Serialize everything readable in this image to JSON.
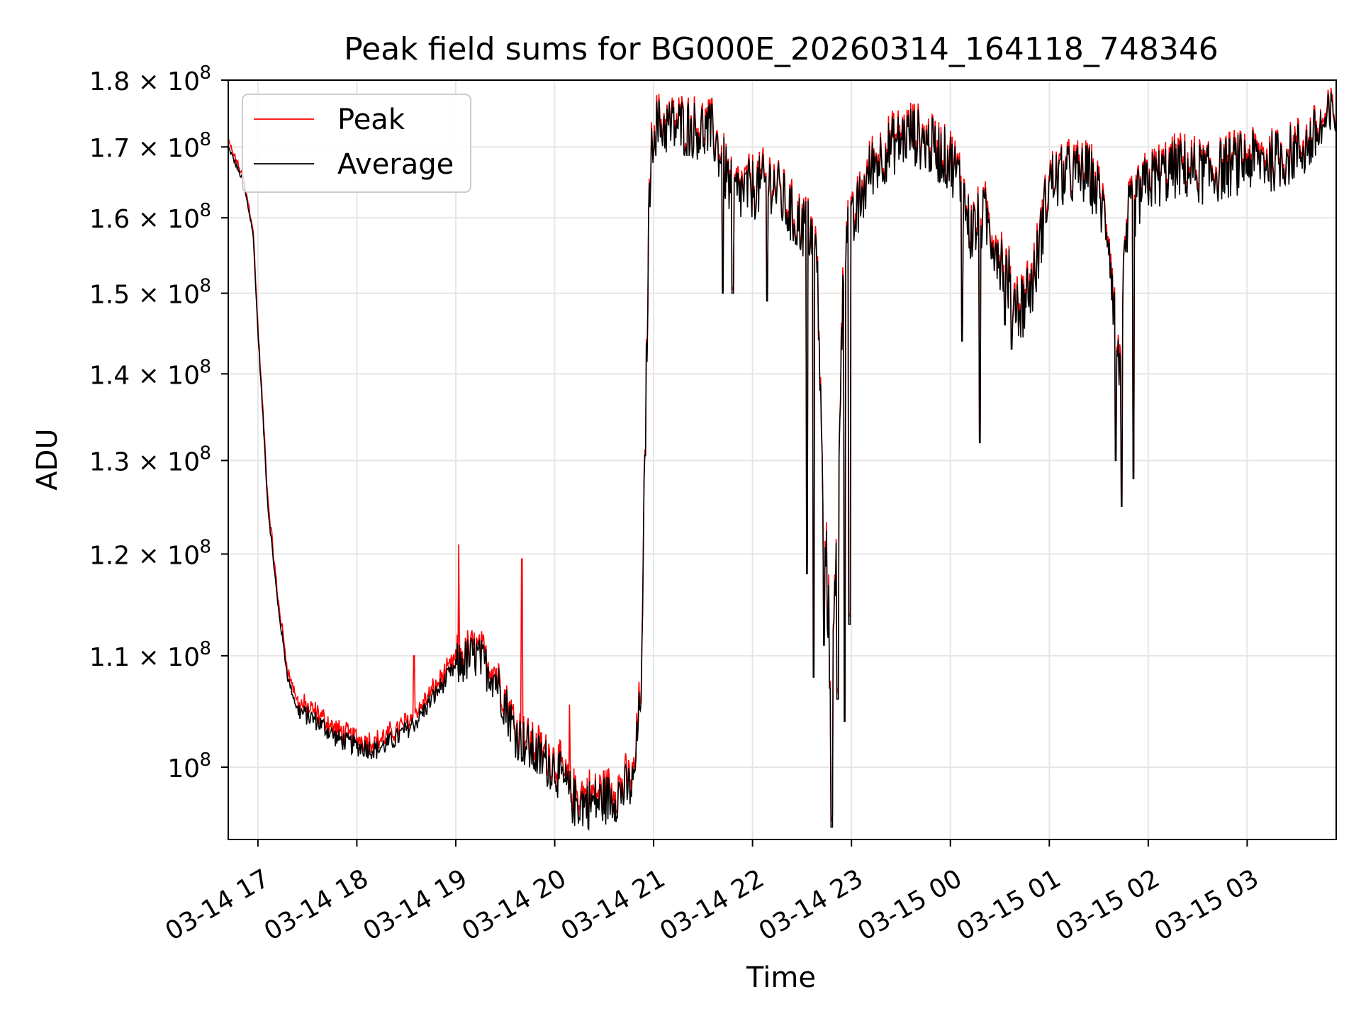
{
  "chart_data": {
    "type": "line",
    "title": "Peak field sums for BG000E_20260314_164118_748346",
    "xlabel": "Time",
    "ylabel": "ADU",
    "yscale": "log",
    "ylim": [
      94000000,
      180000000
    ],
    "xlim_hours": [
      16.7,
      27.9
    ],
    "grid": true,
    "legend_position": "upper-left",
    "x_ticks": [
      {
        "hour": 17,
        "label": "03-14 17"
      },
      {
        "hour": 18,
        "label": "03-14 18"
      },
      {
        "hour": 19,
        "label": "03-14 19"
      },
      {
        "hour": 20,
        "label": "03-14 20"
      },
      {
        "hour": 21,
        "label": "03-14 21"
      },
      {
        "hour": 22,
        "label": "03-14 22"
      },
      {
        "hour": 23,
        "label": "03-14 23"
      },
      {
        "hour": 24,
        "label": "03-15 00"
      },
      {
        "hour": 25,
        "label": "03-15 01"
      },
      {
        "hour": 26,
        "label": "03-15 02"
      },
      {
        "hour": 27,
        "label": "03-15 03"
      }
    ],
    "y_ticks": [
      {
        "value": 100000000,
        "mantissa": "",
        "exp": "8"
      },
      {
        "value": 110000000,
        "mantissa": "1.1",
        "exp": "8"
      },
      {
        "value": 120000000,
        "mantissa": "1.2",
        "exp": "8"
      },
      {
        "value": 130000000,
        "mantissa": "1.3",
        "exp": "8"
      },
      {
        "value": 140000000,
        "mantissa": "1.4",
        "exp": "8"
      },
      {
        "value": 150000000,
        "mantissa": "1.5",
        "exp": "8"
      },
      {
        "value": 160000000,
        "mantissa": "1.6",
        "exp": "8"
      },
      {
        "value": 170000000,
        "mantissa": "1.7",
        "exp": "8"
      },
      {
        "value": 180000000,
        "mantissa": "1.8",
        "exp": "8"
      }
    ],
    "series": [
      {
        "name": "Peak",
        "color": "#ff0000"
      },
      {
        "name": "Average",
        "color": "#000000"
      }
    ],
    "trend_hours_vs_mADU": [
      [
        16.7,
        170
      ],
      [
        16.85,
        165
      ],
      [
        16.95,
        158
      ],
      [
        17.0,
        145
      ],
      [
        17.1,
        125
      ],
      [
        17.2,
        115
      ],
      [
        17.3,
        108
      ],
      [
        17.4,
        105
      ],
      [
        17.6,
        104
      ],
      [
        17.8,
        102.5
      ],
      [
        18.0,
        101.8
      ],
      [
        18.2,
        101.5
      ],
      [
        18.4,
        102.5
      ],
      [
        18.6,
        104
      ],
      [
        18.8,
        106.5
      ],
      [
        19.0,
        109
      ],
      [
        19.2,
        110
      ],
      [
        19.4,
        108
      ],
      [
        19.6,
        103
      ],
      [
        19.8,
        101
      ],
      [
        20.0,
        100
      ],
      [
        20.2,
        97
      ],
      [
        20.4,
        97
      ],
      [
        20.6,
        97.5
      ],
      [
        20.8,
        98.5
      ],
      [
        20.88,
        108
      ],
      [
        20.92,
        135
      ],
      [
        20.96,
        165
      ],
      [
        21.0,
        173
      ],
      [
        21.3,
        173
      ],
      [
        21.6,
        172
      ],
      [
        21.8,
        163
      ],
      [
        22.0,
        164
      ],
      [
        22.2,
        165
      ],
      [
        22.4,
        160
      ],
      [
        22.6,
        158
      ],
      [
        22.65,
        155
      ],
      [
        22.7,
        130
      ],
      [
        22.75,
        118
      ],
      [
        22.8,
        105
      ],
      [
        22.85,
        120
      ],
      [
        22.9,
        145
      ],
      [
        22.95,
        160
      ],
      [
        23.0,
        158
      ],
      [
        23.2,
        167
      ],
      [
        23.4,
        170
      ],
      [
        23.6,
        172
      ],
      [
        23.8,
        170
      ],
      [
        24.0,
        168
      ],
      [
        24.1,
        165
      ],
      [
        24.2,
        158
      ],
      [
        24.35,
        160
      ],
      [
        24.5,
        155
      ],
      [
        24.7,
        148
      ],
      [
        24.85,
        152
      ],
      [
        25.0,
        165
      ],
      [
        25.2,
        166
      ],
      [
        25.4,
        166
      ],
      [
        25.5,
        163
      ],
      [
        25.6,
        158
      ],
      [
        25.7,
        140
      ],
      [
        25.8,
        160
      ],
      [
        26.0,
        165
      ],
      [
        26.3,
        167
      ],
      [
        26.6,
        166
      ],
      [
        27.0,
        168
      ],
      [
        27.3,
        168
      ],
      [
        27.6,
        170
      ],
      [
        27.9,
        175
      ]
    ],
    "dips_hours_vs_mADU": [
      [
        22.55,
        118
      ],
      [
        22.62,
        108
      ],
      [
        22.72,
        111
      ],
      [
        22.78,
        107
      ],
      [
        22.8,
        95
      ],
      [
        22.86,
        106
      ],
      [
        22.93,
        104
      ],
      [
        22.98,
        113
      ],
      [
        24.12,
        144
      ],
      [
        24.3,
        132
      ],
      [
        24.55,
        146
      ],
      [
        24.62,
        143
      ],
      [
        25.67,
        130
      ],
      [
        25.73,
        125
      ],
      [
        25.85,
        128
      ],
      [
        21.7,
        150
      ],
      [
        21.8,
        150
      ],
      [
        22.15,
        149
      ]
    ],
    "spikes_hours_vs_mADU": [
      [
        19.03,
        121
      ],
      [
        18.58,
        110
      ],
      [
        19.67,
        119.5
      ],
      [
        20.15,
        105.5
      ]
    ]
  }
}
